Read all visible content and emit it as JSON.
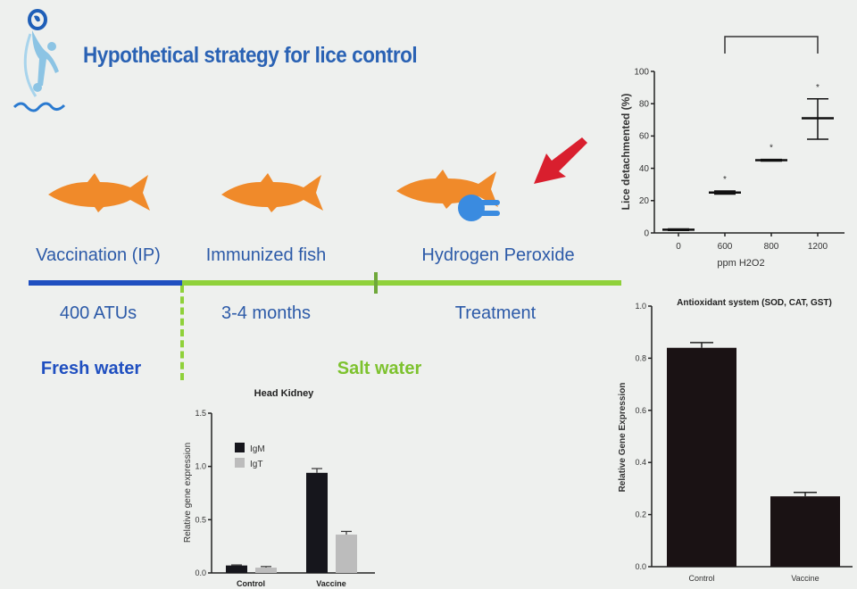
{
  "slide": {
    "title": "Hypothetical strategy for lice control",
    "colors": {
      "title": "#2a62b4",
      "fresh_water": "#1f4fc0",
      "salt_water": "#8fd13a",
      "fish": "#f08a2a",
      "arrow": "#d91f2e",
      "antibody": "#3a8be0"
    },
    "logo_icon": "wave-figure-logo",
    "timeline": {
      "stages": [
        "Vaccination (IP)",
        "Immunized fish",
        "Hydrogen Peroxide"
      ],
      "durations": [
        "400 ATUs",
        "3-4 months",
        "Treatment"
      ],
      "fresh_water": "Fresh water",
      "salt_water": "Salt water"
    }
  },
  "chart_data": [
    {
      "type": "scatter",
      "xlabel": "ppm H2O2",
      "ylabel": "Lice detachmented (%)",
      "categories": [
        "0",
        "600",
        "800",
        "1200"
      ],
      "mean": [
        2,
        25,
        45,
        71
      ],
      "error_low": [
        1.5,
        24,
        44.5,
        58
      ],
      "error_high": [
        2.5,
        26,
        45.5,
        83
      ],
      "significance": [
        "",
        "*",
        "*",
        "*"
      ],
      "significance_bracket": [
        "600",
        "1200"
      ],
      "yticks": [
        "0",
        "20",
        "40",
        "60",
        "80",
        "100"
      ],
      "ylim": [
        0,
        100
      ]
    },
    {
      "type": "bar",
      "title": "Head Kidney",
      "ylabel": "Relative gene expression",
      "categories": [
        "Control",
        "Vaccine"
      ],
      "series": [
        {
          "name": "IgM",
          "values": [
            0.07,
            0.94
          ],
          "errors": [
            0.005,
            0.04
          ],
          "color": "#16161c"
        },
        {
          "name": "IgT",
          "values": [
            0.05,
            0.36
          ],
          "errors": [
            0.01,
            0.03
          ],
          "color": "#bcbcbc"
        }
      ],
      "yticks": [
        "0.0",
        "0.5",
        "1.0",
        "1.5"
      ],
      "ylim": [
        0,
        1.5
      ],
      "legend": "top-left"
    },
    {
      "type": "bar",
      "title": "Antioxidant system (SOD, CAT, GST)",
      "ylabel": "Relative Gene Expression",
      "categories": [
        "Control",
        "Vaccine"
      ],
      "values": [
        0.84,
        0.27
      ],
      "errors": [
        0.02,
        0.015
      ],
      "color": "#1a1214",
      "yticks": [
        "0.0",
        "0.2",
        "0.4",
        "0.6",
        "0.8",
        "1.0"
      ],
      "ylim": [
        0,
        1.0
      ]
    }
  ]
}
